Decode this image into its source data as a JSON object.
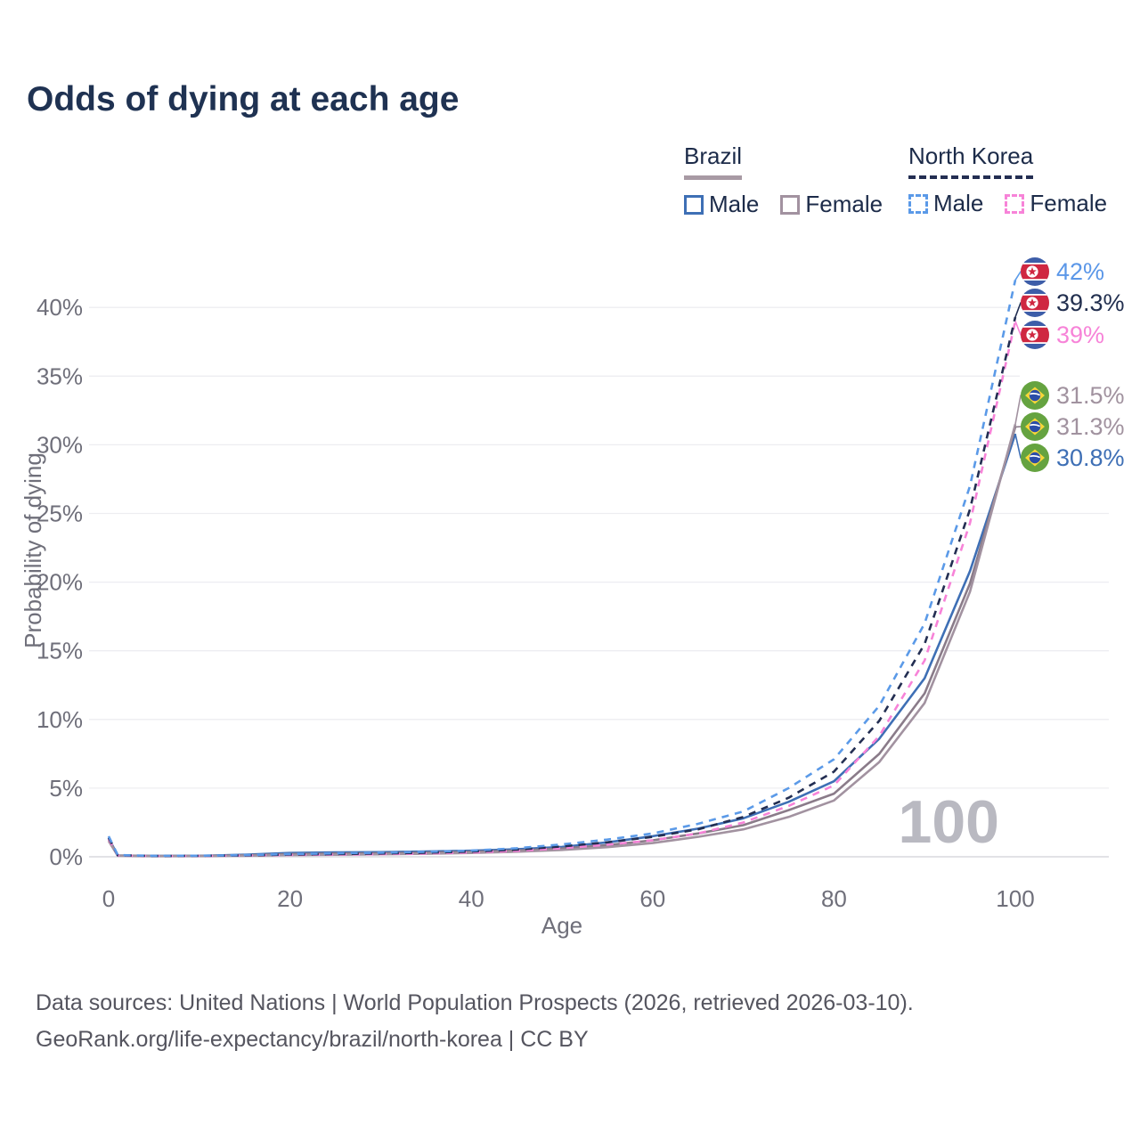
{
  "title": "Odds of dying at each age",
  "legend": {
    "groups": [
      {
        "label": "Brazil",
        "line_style": "solid",
        "underline_color": "#a89aa4",
        "items": [
          {
            "label": "Male",
            "color": "#3e6fb5",
            "dashed": false
          },
          {
            "label": "Female",
            "color": "#a292a0",
            "dashed": false
          }
        ]
      },
      {
        "label": "North Korea",
        "line_style": "dashed",
        "underline_color": "#232e52",
        "items": [
          {
            "label": "Male",
            "color": "#5b9ae8",
            "dashed": true
          },
          {
            "label": "Female",
            "color": "#f783d8",
            "dashed": true
          }
        ]
      }
    ]
  },
  "chart_data": {
    "type": "line",
    "title": "Odds of dying at each age",
    "xlabel": "Age",
    "ylabel": "Probability of dying",
    "xlim": [
      0,
      100
    ],
    "ylim_percent": [
      0,
      43
    ],
    "x_ticks": [
      0,
      20,
      40,
      60,
      80,
      100
    ],
    "y_ticks": [
      "0%",
      "5%",
      "10%",
      "15%",
      "20%",
      "25%",
      "30%",
      "35%",
      "40%"
    ],
    "grid": "horizontal",
    "legend_position": "top-right",
    "hover_age_watermark": "100",
    "x": [
      0,
      1,
      5,
      10,
      15,
      20,
      25,
      30,
      35,
      40,
      45,
      50,
      55,
      60,
      65,
      70,
      75,
      80,
      85,
      90,
      95,
      100
    ],
    "series": [
      {
        "name": "North Korea Male",
        "country": "north-korea",
        "sex": "male",
        "color": "#5b9ae8",
        "label_color": "#5b97e8",
        "dashed": true,
        "end_label": "42%",
        "end_value_percent": 42.0,
        "values": [
          1.5,
          0.12,
          0.07,
          0.08,
          0.12,
          0.2,
          0.25,
          0.3,
          0.36,
          0.45,
          0.62,
          0.9,
          1.25,
          1.7,
          2.4,
          3.3,
          5.0,
          7.1,
          11.0,
          17.0,
          27.0,
          42.0
        ]
      },
      {
        "name": "North Korea Both sexes",
        "country": "north-korea",
        "sex": "total",
        "color": "#232e52",
        "label_color": "#222f4f",
        "dashed": true,
        "end_label": "39.3%",
        "end_value_percent": 39.3,
        "values": [
          1.4,
          0.11,
          0.06,
          0.07,
          0.1,
          0.16,
          0.2,
          0.24,
          0.3,
          0.38,
          0.52,
          0.75,
          1.05,
          1.45,
          2.0,
          2.9,
          4.3,
          6.2,
          9.9,
          15.5,
          25.3,
          39.3
        ]
      },
      {
        "name": "North Korea Female",
        "country": "north-korea",
        "sex": "female",
        "color": "#f783d8",
        "label_color": "#f783d8",
        "dashed": true,
        "end_label": "39%",
        "end_value_percent": 39.0,
        "values": [
          1.3,
          0.1,
          0.05,
          0.06,
          0.09,
          0.13,
          0.16,
          0.19,
          0.24,
          0.31,
          0.43,
          0.62,
          0.88,
          1.2,
          1.7,
          2.5,
          3.7,
          5.2,
          8.8,
          14.3,
          24.3,
          39.0
        ]
      },
      {
        "name": "Brazil Female",
        "country": "brazil",
        "sex": "female",
        "color": "#a292a0",
        "label_color": "#a1929f",
        "dashed": false,
        "end_label": "31.5%",
        "end_value_percent": 31.5,
        "values": [
          1.15,
          0.08,
          0.045,
          0.05,
          0.08,
          0.12,
          0.15,
          0.18,
          0.22,
          0.28,
          0.37,
          0.5,
          0.7,
          1.0,
          1.45,
          2.0,
          2.9,
          4.1,
          6.9,
          11.2,
          19.3,
          31.5
        ]
      },
      {
        "name": "Brazil Both sexes",
        "country": "brazil",
        "sex": "total",
        "color": "#8a7b89",
        "label_color": "#a1929f",
        "dashed": false,
        "end_label": "31.3%",
        "end_value_percent": 31.3,
        "values": [
          1.25,
          0.09,
          0.05,
          0.06,
          0.11,
          0.2,
          0.24,
          0.26,
          0.3,
          0.36,
          0.45,
          0.6,
          0.85,
          1.2,
          1.7,
          2.3,
          3.4,
          4.6,
          7.5,
          11.9,
          19.9,
          31.3
        ]
      },
      {
        "name": "Brazil Male",
        "country": "brazil",
        "sex": "male",
        "color": "#3e6fb5",
        "label_color": "#3e6fb5",
        "dashed": false,
        "end_label": "30.8%",
        "end_value_percent": 30.8,
        "values": [
          1.35,
          0.1,
          0.06,
          0.07,
          0.15,
          0.28,
          0.32,
          0.34,
          0.38,
          0.44,
          0.55,
          0.72,
          1.05,
          1.5,
          2.05,
          2.8,
          4.0,
          5.5,
          8.6,
          13.0,
          20.8,
          30.8
        ]
      }
    ],
    "colors": {
      "grid": "#ededf1",
      "zero_line": "#d8d8de",
      "axis_text": "#6f6f7a",
      "watermark": "#b9b9c1"
    }
  },
  "footer": {
    "line1": "Data sources: United Nations | World Population Prospects (2026, retrieved 2026-03-10).",
    "line2": "GeoRank.org/life-expectancy/brazil/north-korea | CC BY"
  }
}
